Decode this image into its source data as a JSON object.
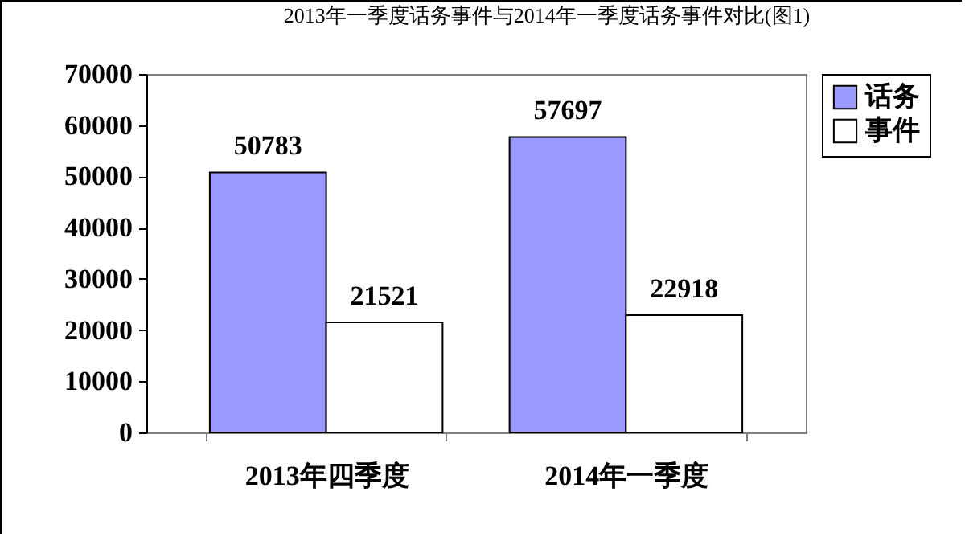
{
  "chart_data": {
    "type": "bar",
    "title": "2013年一季度话务事件与2014年一季度话务事件对比(图1)",
    "categories": [
      "2013年四季度",
      "2014年一季度"
    ],
    "series": [
      {
        "name": "话务",
        "color": "#9999ff",
        "values": [
          50783,
          57697
        ]
      },
      {
        "name": "事件",
        "color": "#ffffff",
        "values": [
          21521,
          22918
        ]
      }
    ],
    "ylim": [
      0,
      70000
    ],
    "yticks": [
      0,
      10000,
      20000,
      30000,
      40000,
      50000,
      60000,
      70000
    ],
    "grid": false,
    "legend": "right",
    "data_labels": true
  }
}
